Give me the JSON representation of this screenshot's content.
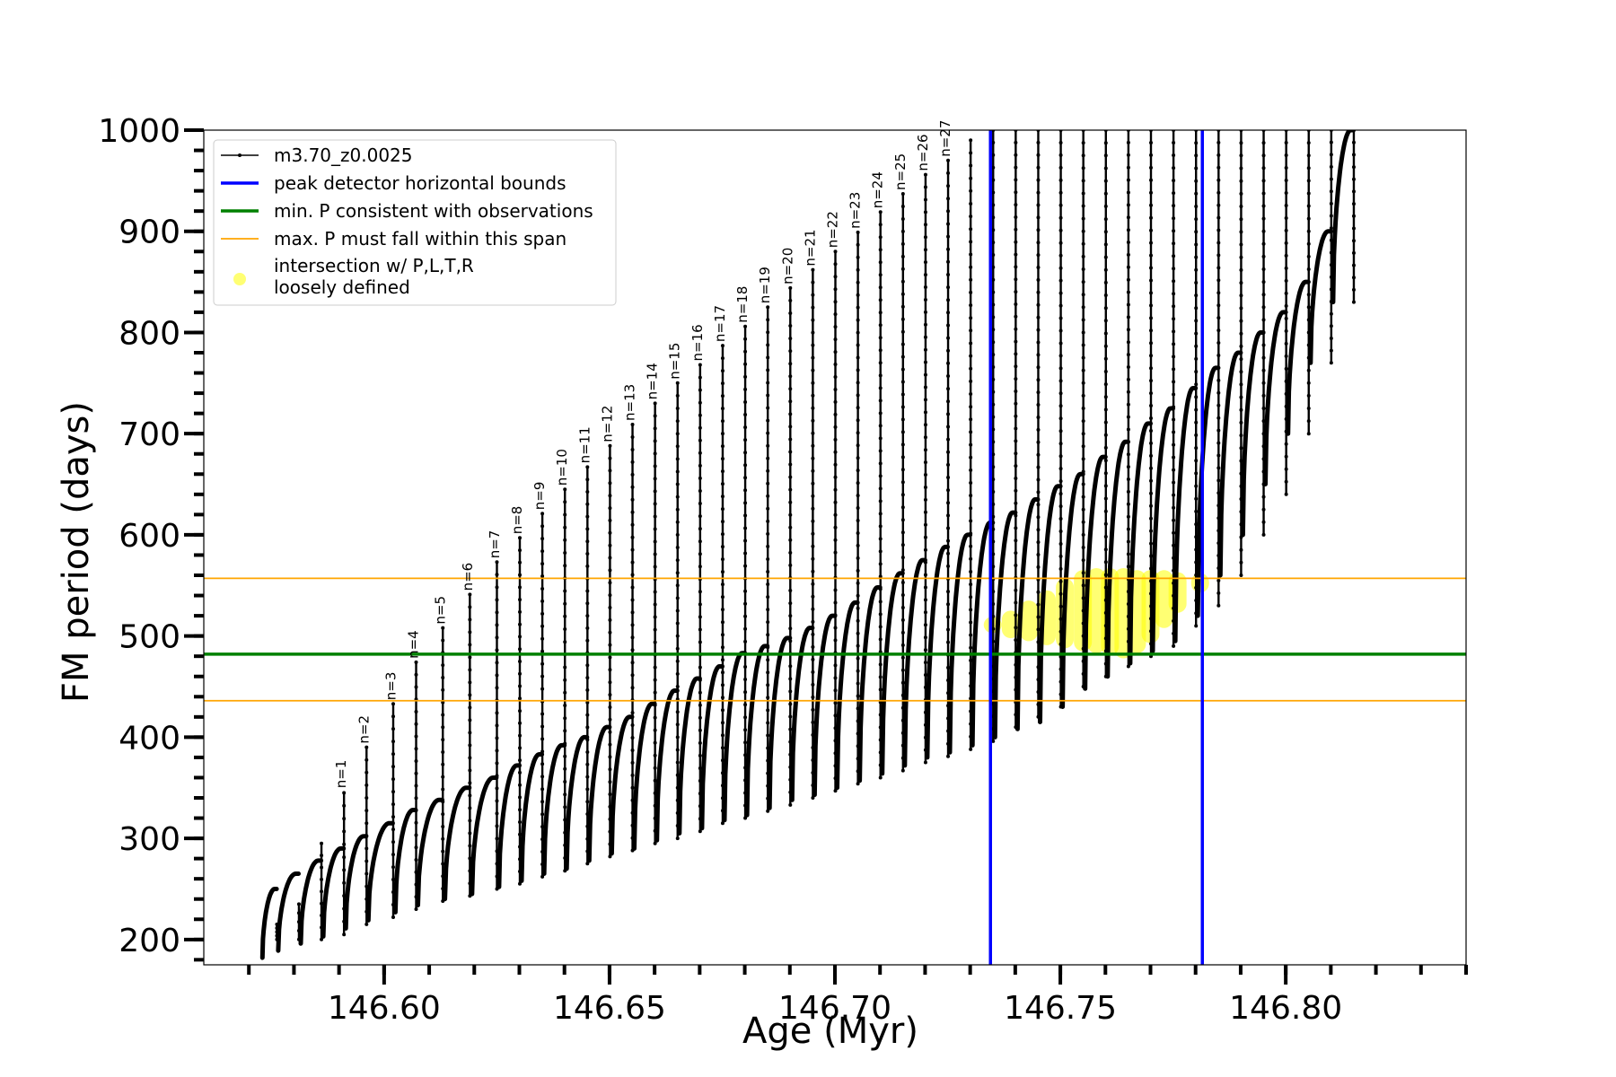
{
  "chart_data": {
    "type": "line",
    "title": "",
    "xlabel": "Age (Myr)",
    "ylabel": "FM period (days)",
    "xlim": [
      146.56,
      146.84
    ],
    "ylim": [
      175,
      1000
    ],
    "xticks": [
      146.6,
      146.65,
      146.7,
      146.75,
      146.8
    ],
    "xtick_labels": [
      "146.60",
      "146.65",
      "146.70",
      "146.75",
      "146.80"
    ],
    "yticks": [
      200,
      300,
      400,
      500,
      600,
      700,
      800,
      900,
      1000
    ],
    "ytick_labels": [
      "200",
      "300",
      "400",
      "500",
      "600",
      "700",
      "800",
      "900",
      "1000"
    ],
    "x_minor_step": 0.01,
    "y_minor_step": 20,
    "grid": false,
    "legend_position": "top-left",
    "series": [
      {
        "name": "m3.70_z0.0025",
        "color": "#000000",
        "style": "line-with-point-markers",
        "pulse_start_ages": [
          146.573,
          146.5765,
          146.5815,
          146.5865,
          146.5915,
          146.5965,
          146.6025,
          146.6075,
          146.6135,
          146.6195,
          146.6255,
          146.6305,
          146.6355,
          146.6405,
          146.6455,
          146.6505,
          146.6555,
          146.6605,
          146.6655,
          146.6705,
          146.6755,
          146.6805,
          146.6855,
          146.6905,
          146.6955,
          146.7005,
          146.7055,
          146.7105,
          146.7155,
          146.7205,
          146.7255,
          146.7305,
          146.7355,
          146.7405,
          146.7455,
          146.7505,
          146.7555,
          146.7605,
          146.7655,
          146.7705,
          146.7755,
          146.7805,
          146.7855,
          146.7905,
          146.7955,
          146.8005,
          146.8055,
          146.8105
        ],
        "pulse_start_periods": [
          182,
          189,
          196,
          203,
          211,
          219,
          227,
          234,
          240,
          245,
          252,
          258,
          265,
          270,
          278,
          285,
          290,
          298,
          305,
          310,
          318,
          323,
          330,
          338,
          343,
          350,
          357,
          364,
          372,
          380,
          385,
          392,
          400,
          408,
          415,
          430,
          448,
          460,
          473,
          485,
          495,
          520,
          560,
          600,
          650,
          700,
          770,
          830
        ],
        "envelope_peaks": [
          250,
          265,
          278,
          290,
          302,
          315,
          328,
          338,
          350,
          360,
          372,
          383,
          392,
          400,
          410,
          420,
          433,
          446,
          458,
          470,
          483,
          490,
          498,
          508,
          520,
          533,
          548,
          562,
          575,
          588,
          600,
          612,
          622,
          635,
          648,
          660,
          677,
          692,
          710,
          725,
          745,
          765,
          780,
          800,
          820,
          850,
          900,
          1000
        ],
        "spike_peaks": [
          215,
          235,
          295,
          345,
          390,
          433,
          474,
          508,
          541,
          573,
          597,
          621,
          645,
          667,
          688,
          709,
          730,
          750,
          768,
          787,
          806,
          825,
          844,
          862,
          880,
          899,
          919,
          937,
          956,
          970,
          990,
          1000,
          1000,
          1000,
          1000,
          1000,
          1000,
          1000,
          1000,
          1000,
          1000,
          1000,
          1000,
          1000,
          1000,
          1000,
          1000,
          1000
        ],
        "spike_bottoms": [
          200,
          200,
          200,
          205,
          215,
          222,
          230,
          238,
          243,
          250,
          255,
          262,
          268,
          275,
          282,
          288,
          295,
          300,
          307,
          315,
          320,
          327,
          333,
          340,
          347,
          354,
          360,
          367,
          375,
          381,
          388,
          396,
          410,
          420,
          430,
          450,
          460,
          470,
          480,
          490,
          510,
          530,
          560,
          600,
          640,
          700,
          770,
          830
        ],
        "spike_labels": [
          "n=1",
          "n=2",
          "n=3",
          "n=4",
          "n=5",
          "n=6",
          "n=7",
          "n=8",
          "n=9",
          "n=10",
          "n=11",
          "n=12",
          "n=13",
          "n=14",
          "n=15",
          "n=16",
          "n=17",
          "n=18",
          "n=19",
          "n=20",
          "n=21",
          "n=22",
          "n=23",
          "n=24",
          "n=25",
          "n=26",
          "n=27"
        ],
        "spike_label_ages": [
          146.5905,
          146.5955,
          146.6015,
          146.6065,
          146.6125,
          146.6185,
          146.6245,
          146.6295,
          146.6345,
          146.6395,
          146.6445,
          146.6495,
          146.6545,
          146.6595,
          146.6645,
          146.6695,
          146.6745,
          146.6795,
          146.6845,
          146.6895,
          146.6945,
          146.6995,
          146.7045,
          146.7095,
          146.7145,
          146.7195,
          146.7245
        ],
        "spike_label_periods": [
          346,
          390,
          433,
          474,
          508,
          541,
          573,
          597,
          621,
          645,
          667,
          688,
          709,
          730,
          750,
          768,
          787,
          806,
          825,
          844,
          862,
          880,
          899,
          919,
          937,
          956,
          970
        ]
      },
      {
        "name": "peak detector horizontal bounds",
        "color": "#0000ff",
        "orientation": "vertical",
        "x": [
          146.7345,
          146.7815
        ]
      },
      {
        "name": "min. P consistent with observations",
        "color": "#008000",
        "orientation": "horizontal",
        "y": [
          482
        ]
      },
      {
        "name": "max. P must fall within this span",
        "color": "#ffa500",
        "orientation": "horizontal",
        "y": [
          436,
          557
        ]
      },
      {
        "name": "intersection w/ P,L,T,R\nloosely defined",
        "color": "#ffff00",
        "style": "scatter",
        "points": [
          {
            "x": 146.735,
            "y_min": 510,
            "y_max": 512
          },
          {
            "x": 146.739,
            "y_min": 505,
            "y_max": 518
          },
          {
            "x": 146.743,
            "y_min": 502,
            "y_max": 528
          },
          {
            "x": 146.747,
            "y_min": 498,
            "y_max": 538
          },
          {
            "x": 146.751,
            "y_min": 495,
            "y_max": 550
          },
          {
            "x": 146.755,
            "y_min": 492,
            "y_max": 558
          },
          {
            "x": 146.758,
            "y_min": 490,
            "y_max": 560
          },
          {
            "x": 146.761,
            "y_min": 488,
            "y_max": 560
          },
          {
            "x": 146.764,
            "y_min": 485,
            "y_max": 560
          },
          {
            "x": 146.767,
            "y_min": 490,
            "y_max": 558
          },
          {
            "x": 146.77,
            "y_min": 500,
            "y_max": 558
          },
          {
            "x": 146.773,
            "y_min": 515,
            "y_max": 558
          },
          {
            "x": 146.776,
            "y_min": 530,
            "y_max": 556
          },
          {
            "x": 146.781,
            "y_min": 550,
            "y_max": 555
          }
        ]
      }
    ]
  }
}
